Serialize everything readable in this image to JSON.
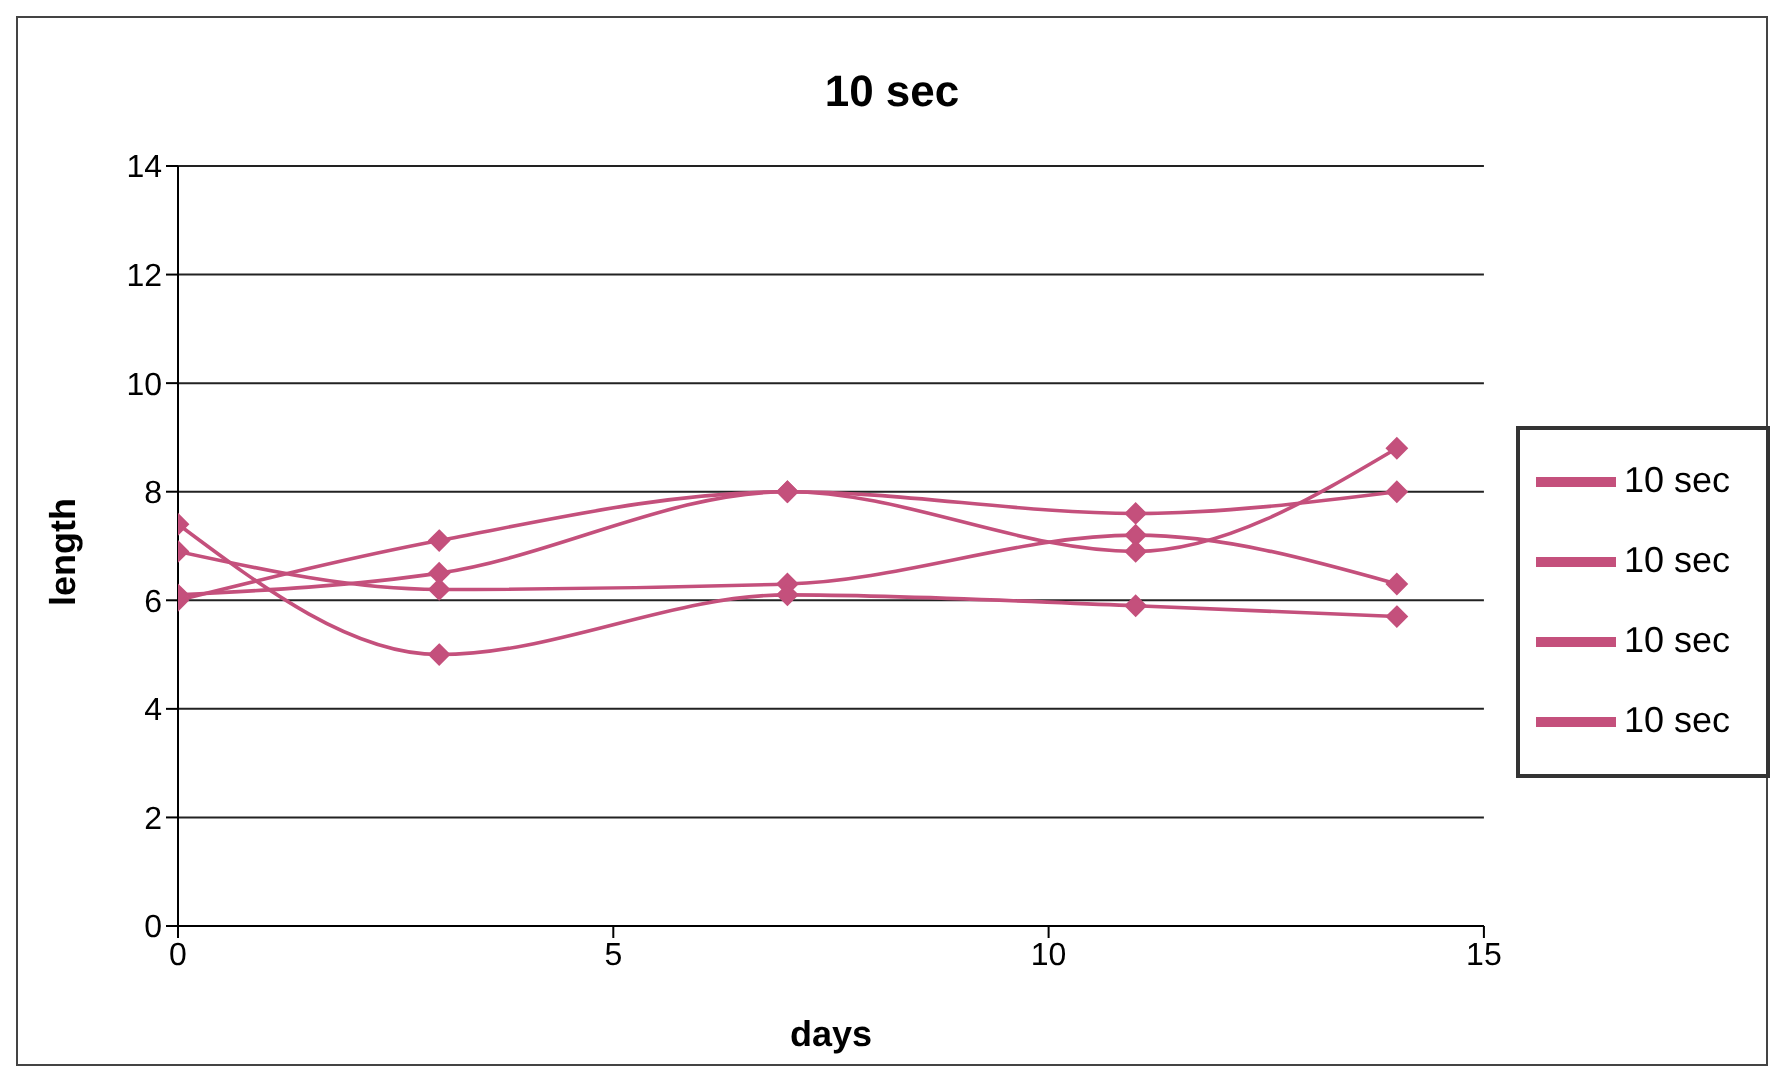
{
  "chart_data": {
    "type": "line",
    "title": "10 sec",
    "xlabel": "days",
    "ylabel": "length",
    "x": [
      0,
      3,
      7,
      11,
      14
    ],
    "series": [
      {
        "name": "10 sec",
        "color": "#c4507c",
        "values": [
          6.0,
          7.1,
          8.0,
          7.6,
          8.0
        ]
      },
      {
        "name": "10 sec",
        "color": "#c4507c",
        "values": [
          6.1,
          6.5,
          8.0,
          6.9,
          8.8
        ]
      },
      {
        "name": "10 sec",
        "color": "#c4507c",
        "values": [
          6.9,
          6.2,
          6.3,
          7.2,
          6.3
        ]
      },
      {
        "name": "10 sec",
        "color": "#c4507c",
        "values": [
          7.4,
          5.0,
          6.1,
          5.9,
          5.7
        ]
      }
    ],
    "xlim": [
      0,
      15
    ],
    "xticks": [
      0,
      5,
      10,
      15
    ],
    "ylim": [
      0,
      14
    ],
    "yticks": [
      0,
      2,
      4,
      6,
      8,
      10,
      12,
      14
    ],
    "grid": "y",
    "legend": "right",
    "marker": "diamond",
    "line_style": "solid"
  }
}
